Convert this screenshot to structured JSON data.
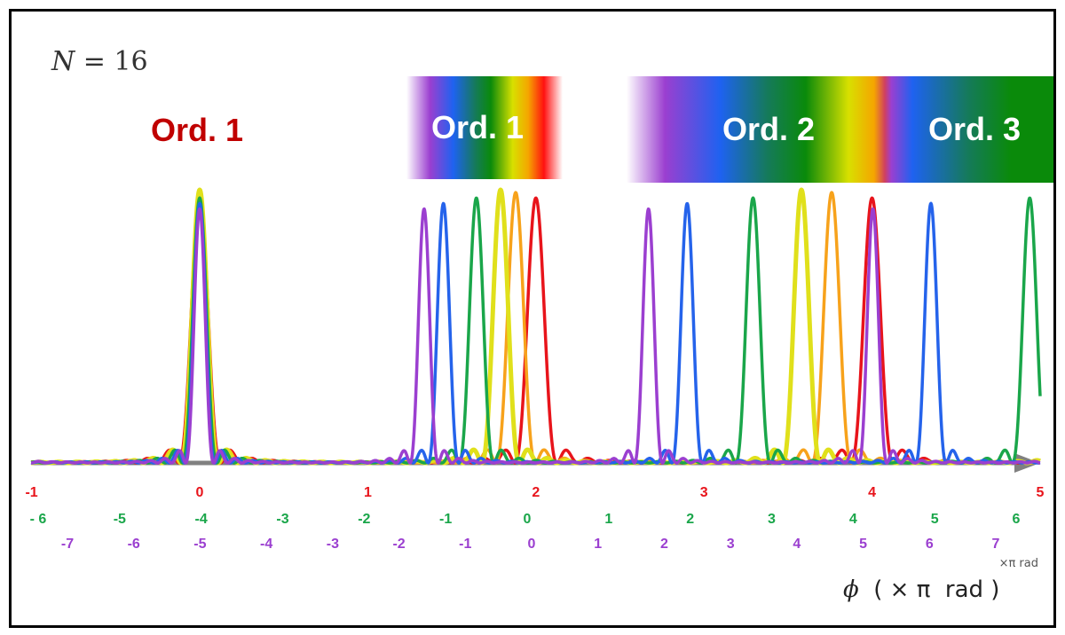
{
  "header": {
    "n_label_symbol": "N",
    "n_label_rest": " = 16"
  },
  "bands": {
    "ord1_red": "Ord. 1",
    "ord1": "Ord. 1",
    "ord2": "Ord. 2",
    "ord3": "Ord. 3"
  },
  "axis": {
    "title_symbol": "ϕ",
    "title_rest": "  ( × π  rad )"
  },
  "colors": {
    "red": "#e8141b",
    "orange": "#f7a21b",
    "yellow": "#e0e01b",
    "green": "#1aa64a",
    "blue": "#2563eb",
    "purple": "#9b3fd0",
    "axis": "#808080",
    "ord_red_text": "#c00000"
  },
  "chart_data": {
    "type": "line",
    "N": 16,
    "xlim": [
      -1,
      5
    ],
    "x_unit": "×π rad",
    "tick_rows": [
      {
        "color": "red",
        "labels": [
          "-1",
          "0",
          "1",
          "2",
          "3",
          "4",
          "5"
        ]
      },
      {
        "color": "green",
        "labels": [
          "- 6",
          "-5",
          "-4",
          "-3",
          "-2",
          "-1",
          "0",
          "1",
          "2",
          "3",
          "4",
          "5",
          "6"
        ]
      },
      {
        "color": "purple",
        "labels": [
          "-7",
          "-6",
          "-5",
          "-4",
          "-3",
          "-2",
          "-1",
          "0",
          "1",
          "2",
          "3",
          "4",
          "5",
          "6",
          "7"
        ]
      }
    ],
    "series": [
      {
        "color": "red",
        "period": 2.0,
        "peak": 0.97
      },
      {
        "color": "orange",
        "period": 1.88,
        "peak": 0.99
      },
      {
        "color": "yellow",
        "period": 1.79,
        "peak": 1.0
      },
      {
        "color": "green",
        "period": 1.646,
        "peak": 0.97
      },
      {
        "color": "blue",
        "period": 1.45,
        "peak": 0.95
      },
      {
        "color": "purple",
        "period": 1.335,
        "peak": 0.93
      }
    ]
  }
}
